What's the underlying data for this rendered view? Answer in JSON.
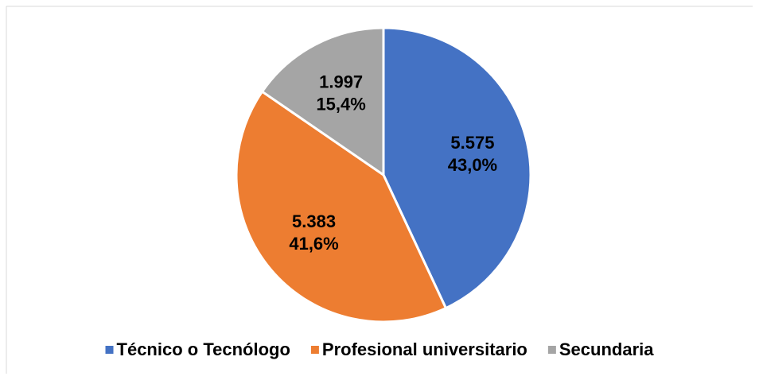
{
  "chart_data": {
    "type": "pie",
    "categories": [
      "Técnico o Tecnólogo",
      "Profesional universitario",
      "Secundaria"
    ],
    "values": [
      5575,
      5383,
      1997
    ],
    "value_labels": [
      "5.575",
      "5.383",
      "1.997"
    ],
    "percentages": [
      43.0,
      41.6,
      15.4
    ],
    "percentage_labels": [
      "43,0%",
      "41,6%",
      "15,4%"
    ],
    "colors": [
      "#4472c4",
      "#ed7d31",
      "#a5a5a5"
    ],
    "legend": "bottom"
  }
}
